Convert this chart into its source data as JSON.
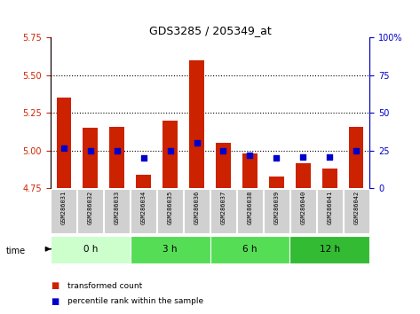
{
  "title": "GDS3285 / 205349_at",
  "samples": [
    "GSM286031",
    "GSM286032",
    "GSM286033",
    "GSM286034",
    "GSM286035",
    "GSM286036",
    "GSM286037",
    "GSM286038",
    "GSM286039",
    "GSM286040",
    "GSM286041",
    "GSM286042"
  ],
  "transformed_count": [
    5.35,
    5.15,
    5.16,
    4.84,
    5.2,
    5.6,
    5.05,
    4.98,
    4.83,
    4.92,
    4.88,
    5.16
  ],
  "percentile_rank": [
    27,
    25,
    25,
    20,
    25,
    30,
    25,
    22,
    20,
    21,
    21,
    25
  ],
  "base_value": 4.75,
  "ylim": [
    4.75,
    5.75
  ],
  "y2lim": [
    0,
    100
  ],
  "yticks": [
    4.75,
    5.0,
    5.25,
    5.5,
    5.75
  ],
  "y2ticks": [
    0,
    25,
    50,
    75,
    100
  ],
  "bar_color": "#cc2200",
  "dot_color": "#0000cc",
  "groups": [
    {
      "label": "0 h",
      "start": 0,
      "end": 2,
      "color": "#ccffcc"
    },
    {
      "label": "3 h",
      "start": 3,
      "end": 5,
      "color": "#55dd55"
    },
    {
      "label": "6 h",
      "start": 6,
      "end": 8,
      "color": "#55dd55"
    },
    {
      "label": "12 h",
      "start": 9,
      "end": 11,
      "color": "#33bb33"
    }
  ],
  "legend_bar": "transformed count",
  "legend_dot": "percentile rank within the sample",
  "tick_color_left": "#cc2200",
  "tick_color_right": "#0000cc",
  "grid_yticks": [
    5.0,
    5.25,
    5.5
  ]
}
